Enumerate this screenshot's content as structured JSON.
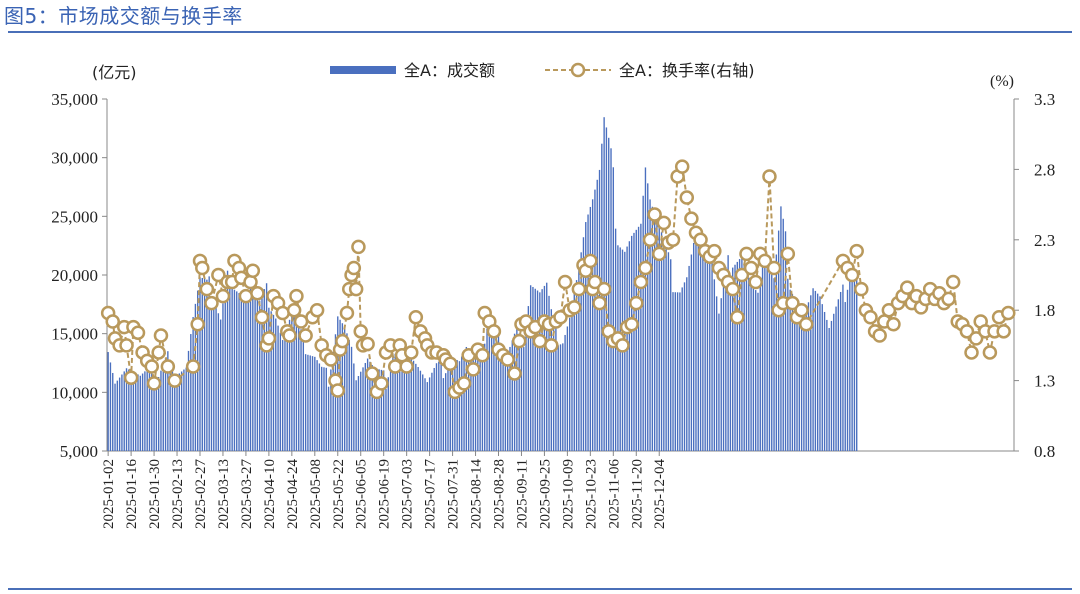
{
  "figure": {
    "title": "图5：市场成交额与换手率"
  },
  "colors": {
    "title": "#3a63b4",
    "rule": "#4a6fb8",
    "bar": "#4a6fbf",
    "line": "#b9995c",
    "marker_fill": "#ffffff"
  },
  "chart_data": {
    "type": "bar+line",
    "title": "",
    "left_axis": {
      "label": "(亿元)",
      "min": 5000,
      "max": 35000,
      "ticks": [
        5000,
        10000,
        15000,
        20000,
        25000,
        30000,
        35000
      ],
      "tick_labels": [
        "5,000",
        "10,000",
        "15,000",
        "20,000",
        "25,000",
        "30,000",
        "35,000"
      ]
    },
    "right_axis": {
      "label": "(%)",
      "min": 0.8,
      "max": 3.3,
      "ticks": [
        0.8,
        1.3,
        1.8,
        2.3,
        2.8,
        3.3
      ],
      "tick_labels": [
        "0.8",
        "1.3",
        "1.8",
        "2.3",
        "2.8",
        "3.3"
      ]
    },
    "x_tick_labels": [
      "2025-01-02",
      "2025-01-16",
      "2025-01-30",
      "2025-02-13",
      "2025-02-27",
      "2025-03-13",
      "2025-03-27",
      "2025-04-10",
      "2025-04-24",
      "2025-05-08",
      "2025-05-22",
      "2025-06-05",
      "2025-06-19",
      "2025-07-03",
      "2025-07-17",
      "2025-07-31",
      "2025-08-14",
      "2025-08-28",
      "2025-09-11",
      "2025-09-25",
      "2025-10-09",
      "2025-10-23",
      "2025-11-06",
      "2025-11-20",
      "2025-12-04"
    ],
    "legend": {
      "position": "top-center",
      "bar_label": "全A：成交额",
      "line_label": "全A：换手率(右轴)"
    },
    "series": [
      {
        "name": "全A：成交额",
        "axis": "left",
        "kind": "bar",
        "anchors": [
          [
            0,
            14000
          ],
          [
            3,
            11000
          ],
          [
            8,
            12000
          ],
          [
            11,
            11500
          ],
          [
            14,
            11000
          ],
          [
            19,
            11600
          ],
          [
            22,
            12000
          ],
          [
            26,
            14000
          ],
          [
            29,
            11500
          ],
          [
            34,
            12000
          ],
          [
            37,
            16000
          ],
          [
            40,
            19000
          ],
          [
            43,
            18500
          ],
          [
            46,
            19000
          ],
          [
            49,
            17000
          ],
          [
            52,
            21000
          ],
          [
            55,
            19000
          ],
          [
            59,
            18000
          ],
          [
            62,
            18500
          ],
          [
            66,
            17000
          ],
          [
            70,
            18500
          ],
          [
            73,
            17200
          ],
          [
            76,
            15000
          ],
          [
            79,
            16500
          ],
          [
            82,
            17500
          ],
          [
            86,
            13000
          ],
          [
            90,
            12500
          ],
          [
            93,
            11500
          ],
          [
            96,
            11200
          ],
          [
            100,
            17200
          ],
          [
            103,
            16000
          ],
          [
            106,
            14000
          ],
          [
            108,
            11000
          ],
          [
            113,
            12500
          ],
          [
            116,
            11500
          ],
          [
            121,
            11000
          ],
          [
            124,
            14000
          ],
          [
            128,
            13500
          ],
          [
            132,
            13000
          ],
          [
            135,
            12000
          ],
          [
            139,
            10500
          ],
          [
            143,
            11800
          ],
          [
            146,
            12000
          ],
          [
            150,
            13500
          ],
          [
            153,
            13000
          ],
          [
            156,
            14000
          ],
          [
            160,
            13000
          ],
          [
            163,
            12500
          ],
          [
            166,
            16000
          ],
          [
            170,
            14000
          ],
          [
            174,
            14000
          ],
          [
            178,
            16000
          ],
          [
            181,
            14000
          ],
          [
            184,
            19000
          ],
          [
            188,
            18000
          ],
          [
            191,
            18500
          ],
          [
            194,
            15000
          ],
          [
            198,
            15000
          ],
          [
            201,
            17000
          ],
          [
            205,
            21000
          ],
          [
            208,
            24500
          ],
          [
            211,
            26000
          ],
          [
            214,
            28000
          ],
          [
            216,
            32000
          ],
          [
            219,
            29000
          ],
          [
            222,
            24000
          ],
          [
            225,
            23000
          ],
          [
            228,
            24000
          ],
          [
            232,
            24500
          ],
          [
            234,
            29000
          ],
          [
            236,
            26000
          ],
          [
            238,
            24500
          ],
          [
            242,
            22000
          ],
          [
            245,
            20000
          ],
          [
            249,
            19500
          ],
          [
            252,
            20500
          ],
          [
            256,
            24000
          ],
          [
            259,
            22000
          ],
          [
            263,
            20500
          ],
          [
            266,
            16000
          ],
          [
            269,
            19500
          ],
          [
            272,
            22000
          ],
          [
            276,
            22500
          ],
          [
            280,
            19500
          ],
          [
            283,
            18500
          ],
          [
            286,
            21500
          ],
          [
            290,
            19000
          ],
          [
            293,
            24500
          ],
          [
            297,
            20000
          ],
          [
            301,
            18000
          ],
          [
            304,
            17500
          ],
          [
            307,
            19000
          ],
          [
            310,
            18000
          ],
          [
            314,
            15000
          ],
          [
            317,
            16500
          ],
          [
            320,
            18000
          ],
          [
            323,
            21000
          ],
          [
            326,
            20500
          ]
        ]
      },
      {
        "name": "全A：换手率(右轴)",
        "axis": "right",
        "kind": "line",
        "anchors": [
          [
            0,
            1.78
          ],
          [
            2,
            1.72
          ],
          [
            3,
            1.6
          ],
          [
            5,
            1.55
          ],
          [
            7,
            1.68
          ],
          [
            8,
            1.55
          ],
          [
            10,
            1.32
          ],
          [
            11,
            1.68
          ],
          [
            13,
            1.64
          ],
          [
            15,
            1.5
          ],
          [
            17,
            1.44
          ],
          [
            19,
            1.4
          ],
          [
            20,
            1.28
          ],
          [
            22,
            1.5
          ],
          [
            23,
            1.62
          ],
          [
            26,
            1.4
          ],
          [
            29,
            1.3
          ],
          [
            37,
            1.4
          ],
          [
            39,
            1.7
          ],
          [
            40,
            2.15
          ],
          [
            41,
            2.1
          ],
          [
            43,
            1.95
          ],
          [
            45,
            1.85
          ],
          [
            48,
            2.05
          ],
          [
            50,
            1.9
          ],
          [
            52,
            2.0
          ],
          [
            54,
            2.0
          ],
          [
            55,
            2.15
          ],
          [
            57,
            2.1
          ],
          [
            58,
            2.03
          ],
          [
            60,
            1.9
          ],
          [
            62,
            2.0
          ],
          [
            63,
            2.08
          ],
          [
            65,
            1.92
          ],
          [
            67,
            1.75
          ],
          [
            69,
            1.55
          ],
          [
            70,
            1.6
          ],
          [
            72,
            1.9
          ],
          [
            74,
            1.85
          ],
          [
            76,
            1.78
          ],
          [
            78,
            1.65
          ],
          [
            79,
            1.62
          ],
          [
            81,
            1.8
          ],
          [
            82,
            1.9
          ],
          [
            84,
            1.72
          ],
          [
            86,
            1.62
          ],
          [
            89,
            1.75
          ],
          [
            91,
            1.8
          ],
          [
            93,
            1.55
          ],
          [
            95,
            1.48
          ],
          [
            97,
            1.45
          ],
          [
            99,
            1.3
          ],
          [
            100,
            1.23
          ],
          [
            101,
            1.52
          ],
          [
            102,
            1.58
          ],
          [
            104,
            1.78
          ],
          [
            105,
            1.95
          ],
          [
            106,
            2.05
          ],
          [
            107,
            2.1
          ],
          [
            108,
            1.95
          ],
          [
            109,
            2.25
          ],
          [
            110,
            1.65
          ],
          [
            111,
            1.55
          ],
          [
            113,
            1.56
          ],
          [
            115,
            1.35
          ],
          [
            117,
            1.22
          ],
          [
            119,
            1.28
          ],
          [
            121,
            1.5
          ],
          [
            123,
            1.55
          ],
          [
            125,
            1.4
          ],
          [
            127,
            1.55
          ],
          [
            128,
            1.48
          ],
          [
            130,
            1.4
          ],
          [
            132,
            1.5
          ],
          [
            134,
            1.75
          ],
          [
            136,
            1.65
          ],
          [
            138,
            1.6
          ],
          [
            139,
            1.55
          ],
          [
            141,
            1.5
          ],
          [
            143,
            1.5
          ],
          [
            146,
            1.48
          ],
          [
            147,
            1.45
          ],
          [
            149,
            1.42
          ],
          [
            151,
            1.22
          ],
          [
            153,
            1.25
          ],
          [
            155,
            1.28
          ],
          [
            157,
            1.48
          ],
          [
            159,
            1.38
          ],
          [
            161,
            1.52
          ],
          [
            163,
            1.48
          ],
          [
            164,
            1.78
          ],
          [
            166,
            1.72
          ],
          [
            168,
            1.65
          ],
          [
            170,
            1.52
          ],
          [
            172,
            1.48
          ],
          [
            174,
            1.45
          ],
          [
            177,
            1.35
          ],
          [
            179,
            1.58
          ],
          [
            180,
            1.7
          ],
          [
            182,
            1.72
          ],
          [
            184,
            1.65
          ],
          [
            186,
            1.68
          ],
          [
            188,
            1.58
          ],
          [
            190,
            1.72
          ],
          [
            192,
            1.7
          ],
          [
            193,
            1.55
          ],
          [
            195,
            1.72
          ],
          [
            197,
            1.75
          ],
          [
            199,
            2.0
          ],
          [
            201,
            1.8
          ],
          [
            203,
            1.82
          ],
          [
            205,
            1.95
          ],
          [
            207,
            2.12
          ],
          [
            208,
            2.08
          ],
          [
            210,
            2.15
          ],
          [
            211,
            1.95
          ],
          [
            212,
            2.0
          ],
          [
            214,
            1.85
          ],
          [
            216,
            1.95
          ],
          [
            218,
            1.65
          ],
          [
            220,
            1.58
          ],
          [
            222,
            1.6
          ],
          [
            224,
            1.55
          ],
          [
            226,
            1.68
          ],
          [
            228,
            1.7
          ],
          [
            230,
            1.85
          ],
          [
            232,
            2.0
          ],
          [
            234,
            2.1
          ],
          [
            236,
            2.3
          ],
          [
            238,
            2.48
          ],
          [
            240,
            2.2
          ],
          [
            242,
            2.42
          ],
          [
            244,
            2.28
          ],
          [
            246,
            2.3
          ],
          [
            248,
            2.75
          ],
          [
            250,
            2.82
          ],
          [
            252,
            2.6
          ],
          [
            254,
            2.45
          ],
          [
            256,
            2.35
          ],
          [
            258,
            2.3
          ],
          [
            260,
            2.22
          ],
          [
            262,
            2.18
          ],
          [
            264,
            2.22
          ],
          [
            266,
            2.1
          ],
          [
            268,
            2.05
          ],
          [
            270,
            2.0
          ],
          [
            272,
            1.95
          ],
          [
            274,
            1.75
          ],
          [
            276,
            2.05
          ],
          [
            278,
            2.2
          ],
          [
            280,
            2.1
          ],
          [
            282,
            2.0
          ],
          [
            284,
            2.2
          ],
          [
            286,
            2.15
          ],
          [
            288,
            2.75
          ],
          [
            290,
            2.1
          ],
          [
            292,
            1.8
          ],
          [
            294,
            1.85
          ],
          [
            296,
            2.2
          ],
          [
            298,
            1.85
          ],
          [
            300,
            1.75
          ],
          [
            302,
            1.8
          ],
          [
            304,
            1.7
          ],
          [
            320,
            2.15
          ],
          [
            322,
            2.1
          ],
          [
            324,
            2.05
          ],
          [
            326,
            2.22
          ],
          [
            328,
            1.95
          ],
          [
            330,
            1.8
          ],
          [
            332,
            1.75
          ],
          [
            334,
            1.65
          ],
          [
            336,
            1.62
          ],
          [
            338,
            1.72
          ],
          [
            340,
            1.8
          ],
          [
            342,
            1.7
          ],
          [
            344,
            1.85
          ],
          [
            346,
            1.9
          ],
          [
            348,
            1.96
          ],
          [
            350,
            1.85
          ],
          [
            352,
            1.9
          ],
          [
            354,
            1.82
          ],
          [
            356,
            1.88
          ],
          [
            358,
            1.95
          ],
          [
            360,
            1.88
          ],
          [
            362,
            1.92
          ],
          [
            364,
            1.85
          ],
          [
            366,
            1.88
          ],
          [
            368,
            2.0
          ],
          [
            370,
            1.72
          ],
          [
            372,
            1.7
          ],
          [
            374,
            1.65
          ],
          [
            376,
            1.5
          ],
          [
            378,
            1.6
          ],
          [
            380,
            1.72
          ],
          [
            382,
            1.65
          ],
          [
            384,
            1.5
          ],
          [
            386,
            1.65
          ],
          [
            388,
            1.75
          ],
          [
            390,
            1.65
          ],
          [
            392,
            1.78
          ]
        ]
      }
    ]
  }
}
